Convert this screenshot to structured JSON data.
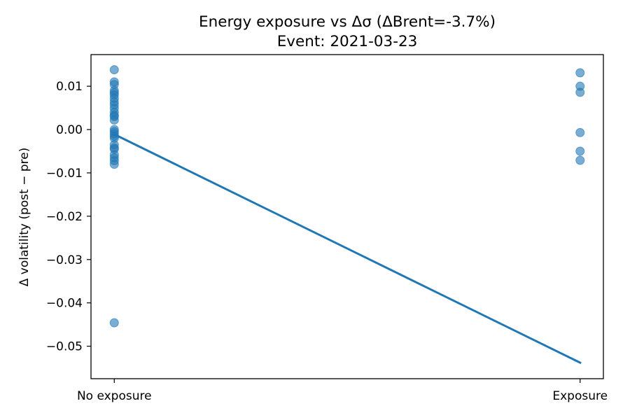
{
  "chart_data": {
    "type": "scatter",
    "title": "Energy exposure vs Δσ  (ΔBrent=-3.7%)",
    "subtitle": "Event: 2021-03-23",
    "xlabel": "",
    "ylabel": "Δ volatility (post − pre)",
    "x_categories": [
      "No exposure",
      "Exposure"
    ],
    "xlim": [
      -0.05,
      1.05
    ],
    "ylim": [
      -0.0575,
      0.0173
    ],
    "y_ticks": [
      0.01,
      0.0,
      -0.01,
      -0.02,
      -0.03,
      -0.04,
      -0.05
    ],
    "y_tick_labels": [
      "0.01",
      "0.00",
      "−0.01",
      "−0.02",
      "−0.03",
      "−0.04",
      "−0.05"
    ],
    "grid": false,
    "series": [
      {
        "kind": "points",
        "color": "#1f77b4",
        "alpha": 0.6,
        "points": [
          {
            "x": 0,
            "y": 0.0138
          },
          {
            "x": 0,
            "y": 0.011
          },
          {
            "x": 0,
            "y": 0.0104
          },
          {
            "x": 0,
            "y": 0.009
          },
          {
            "x": 0,
            "y": 0.0085
          },
          {
            "x": 0,
            "y": 0.008
          },
          {
            "x": 0,
            "y": 0.0072
          },
          {
            "x": 0,
            "y": 0.0064
          },
          {
            "x": 0,
            "y": 0.0057
          },
          {
            "x": 0,
            "y": 0.0049
          },
          {
            "x": 0,
            "y": 0.004
          },
          {
            "x": 0,
            "y": 0.0033
          },
          {
            "x": 0,
            "y": 0.003
          },
          {
            "x": 0,
            "y": 0.0022
          },
          {
            "x": 0,
            "y": 0.0
          },
          {
            "x": 0,
            "y": -0.0005
          },
          {
            "x": 0,
            "y": -0.001
          },
          {
            "x": 0,
            "y": -0.0015
          },
          {
            "x": 0,
            "y": -0.002
          },
          {
            "x": 0,
            "y": -0.0035
          },
          {
            "x": 0,
            "y": -0.0042
          },
          {
            "x": 0,
            "y": -0.0045
          },
          {
            "x": 0,
            "y": -0.0058
          },
          {
            "x": 0,
            "y": -0.0065
          },
          {
            "x": 0,
            "y": -0.0072
          },
          {
            "x": 0,
            "y": -0.008
          },
          {
            "x": 0,
            "y": -0.0446
          },
          {
            "x": 1,
            "y": 0.0131
          },
          {
            "x": 1,
            "y": 0.01
          },
          {
            "x": 1,
            "y": 0.0086
          },
          {
            "x": 1,
            "y": -0.0007
          },
          {
            "x": 1,
            "y": -0.005
          },
          {
            "x": 1,
            "y": -0.0071
          }
        ]
      },
      {
        "kind": "line",
        "color": "#1f77b4",
        "points": [
          {
            "x": 0,
            "y": -0.0011
          },
          {
            "x": 1,
            "y": -0.0538
          }
        ]
      }
    ]
  }
}
